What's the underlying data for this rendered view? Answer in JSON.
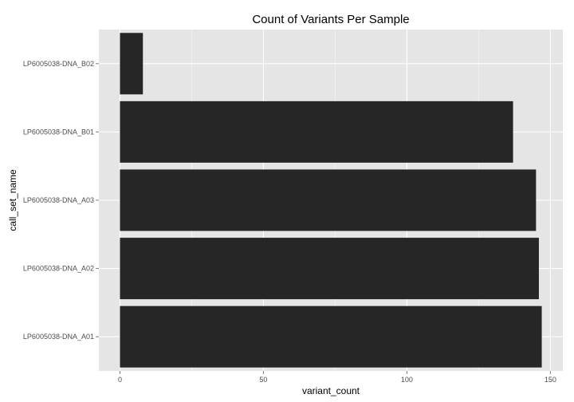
{
  "chart_data": {
    "type": "bar",
    "orientation": "horizontal",
    "title": "Count of Variants Per Sample",
    "xlabel": "variant_count",
    "ylabel": "call_set_name",
    "categories": [
      "LP6005038-DNA_A01",
      "LP6005038-DNA_A02",
      "LP6005038-DNA_A03",
      "LP6005038-DNA_B01",
      "LP6005038-DNA_B02"
    ],
    "values": [
      147,
      146,
      145,
      137,
      8
    ],
    "xlim": [
      -7.35,
      154.35
    ],
    "x_ticks": [
      0,
      50,
      100,
      150
    ],
    "x_tick_labels": [
      "0",
      "50",
      "100",
      "150"
    ],
    "grid": true,
    "colors": {
      "panel": "#e5e5e5",
      "grid_major": "#ffffff",
      "grid_minor": "#f2f2f2",
      "bar": "#262626",
      "tick_text": "#4d4d4d"
    }
  }
}
